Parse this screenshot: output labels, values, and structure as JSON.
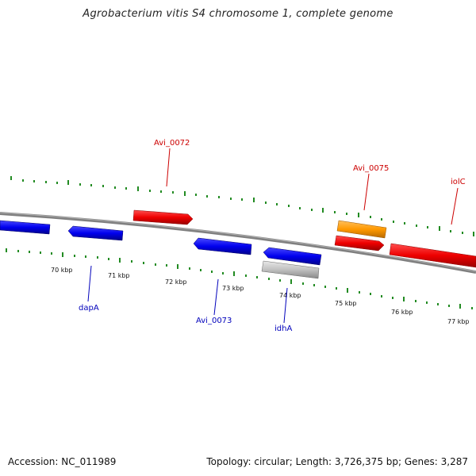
{
  "title": "Agrobacterium vitis S4 chromosome 1, complete genome",
  "footer": {
    "accession": "Accession: NC_011989",
    "summary": "Topology: circular; Length: 3,726,375 bp; Genes: 3,287"
  },
  "colors": {
    "forward_cds": "#ee0000",
    "reverse_cds": "#0000ee",
    "other_feature": "#ff9900",
    "pseudo": "#c0c0c0",
    "backbone": "#808080",
    "ticks": "#228b22"
  },
  "ticks": [
    "70 kbp",
    "71 kbp",
    "72 kbp",
    "73 kbp",
    "74 kbp",
    "75 kbp",
    "76 kbp",
    "77 kbp"
  ],
  "gene_labels": {
    "top": [
      "Avi_0072",
      "Avi_0075",
      "iolC"
    ],
    "bottom": [
      "dapA",
      "Avi_0073",
      "idhA"
    ]
  }
}
